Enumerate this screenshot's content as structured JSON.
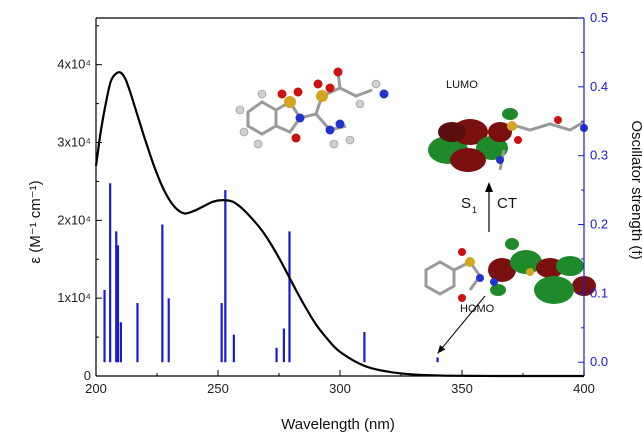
{
  "chart_data": {
    "type": "line",
    "xlabel": "Wavelength (nm)",
    "ylabel": "ε (M⁻¹ cm⁻¹)",
    "ylabel_right": "Oscillator strength (f)",
    "xlim": [
      200,
      400
    ],
    "ylim": [
      0,
      46000
    ],
    "ylim_right": [
      -0.02,
      0.5
    ],
    "x_ticks": [
      200,
      250,
      300,
      350,
      400
    ],
    "y_ticks": [
      {
        "value": 0,
        "label": "0"
      },
      {
        "value": 10000,
        "label": "1x10⁴"
      },
      {
        "value": 20000,
        "label": "2x10⁴"
      },
      {
        "value": 30000,
        "label": "3x10⁴"
      },
      {
        "value": 40000,
        "label": "4x10⁴"
      }
    ],
    "y_right_ticks": [
      0.0,
      0.1,
      0.2,
      0.3,
      0.4,
      0.5
    ],
    "y_right_tick_labels": [
      "0.0",
      "0.1",
      "0.2",
      "0.3",
      "0.4",
      "0.5"
    ],
    "series": [
      {
        "kind": "curve",
        "color": "#000000",
        "x": [
          200,
          202,
          204,
          206,
          208,
          210,
          212,
          214,
          216,
          218,
          220,
          224,
          228,
          232,
          236,
          240,
          244,
          248,
          252,
          256,
          260,
          264,
          268,
          272,
          276,
          280,
          285,
          290,
          295,
          300,
          310,
          320,
          330,
          340,
          350,
          360,
          370,
          380,
          390,
          400
        ],
        "y": [
          27000,
          31500,
          35000,
          37800,
          38800,
          39000,
          38200,
          36500,
          34500,
          32500,
          30500,
          26800,
          23800,
          21800,
          20900,
          21200,
          21800,
          22400,
          22600,
          22400,
          21500,
          20200,
          18700,
          16800,
          14600,
          12200,
          9300,
          6700,
          4700,
          3100,
          1300,
          540,
          200,
          75,
          25,
          8,
          3,
          1,
          0,
          0
        ]
      },
      {
        "kind": "stick",
        "color": "#1a1adb",
        "x": [
          203.5,
          205.8,
          208.3,
          209.0,
          210.2,
          217.0,
          227.2,
          229.8,
          251.5,
          253.0,
          256.5,
          274.0,
          277.0,
          279.3,
          310.0,
          340.0
        ],
        "f": [
          0.105,
          0.26,
          0.19,
          0.17,
          0.058,
          0.086,
          0.2,
          0.093,
          0.086,
          0.25,
          0.04,
          0.021,
          0.049,
          0.19,
          0.044,
          0.007
        ]
      }
    ],
    "annotations": [
      {
        "text": "LUMO",
        "kind": "label"
      },
      {
        "text": "HOMO",
        "kind": "label"
      },
      {
        "text": "S",
        "kind": "label"
      },
      {
        "text": "1",
        "kind": "subscript"
      },
      {
        "text": "CT",
        "kind": "label"
      }
    ],
    "grid": false,
    "legend": "none",
    "colors": {
      "curve": "#000000",
      "sticks": "#1a1adb",
      "right_axis": "#1a1adb",
      "orbital_red": "#7a1010",
      "orbital_green": "#1e8a2a"
    }
  }
}
